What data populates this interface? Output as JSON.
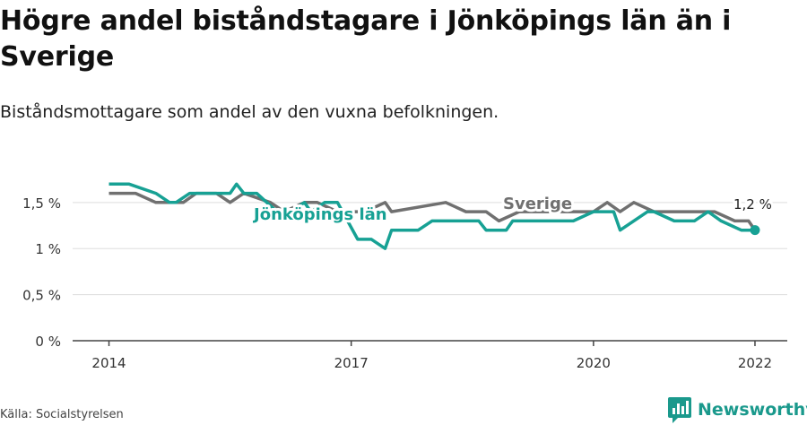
{
  "header": {
    "title": "Högre andel biståndstagare i Jönköpings län än i Sverige",
    "subtitle": "Biståndsmottagare som andel av den vuxna befolkningen."
  },
  "footer": {
    "source": "Källa: Socialstyrelsen",
    "brand": "Newsworthy",
    "brand_icon": "bar-chart-bubble-icon"
  },
  "colors": {
    "sverige": "#707070",
    "jonkoping": "#17a194",
    "grid": "#dddddd",
    "axis": "#444444"
  },
  "chart_data": {
    "type": "line",
    "title": "",
    "xlabel": "",
    "ylabel": "",
    "ylim": [
      0,
      1.8
    ],
    "xlim": [
      2013.55,
      2022.4
    ],
    "yticks": [
      0,
      0.5,
      1,
      1.5
    ],
    "ytick_labels": [
      "0 %",
      "0,5 %",
      "1 %",
      "1,5 %"
    ],
    "xticks": [
      2014,
      2017,
      2020,
      2022
    ],
    "xtick_labels": [
      "2014",
      "2017",
      "2020",
      "2022"
    ],
    "grid": true,
    "end_label": "1,2 %",
    "series": [
      {
        "name": "Sverige",
        "color": "#707070",
        "x": [
          2014.0,
          2014.33,
          2014.58,
          2014.92,
          2015.08,
          2015.33,
          2015.5,
          2015.67,
          2016.0,
          2016.17,
          2016.42,
          2016.58,
          2016.83,
          2017.17,
          2017.42,
          2017.5,
          2018.17,
          2018.42,
          2018.67,
          2018.83,
          2019.08,
          2019.5,
          2019.83,
          2020.0,
          2020.17,
          2020.33,
          2020.5,
          2020.75,
          2021.0,
          2021.25,
          2021.5,
          2021.75,
          2021.92,
          2022.0
        ],
        "y": [
          1.6,
          1.6,
          1.5,
          1.5,
          1.6,
          1.6,
          1.5,
          1.6,
          1.5,
          1.4,
          1.5,
          1.5,
          1.4,
          1.4,
          1.5,
          1.4,
          1.5,
          1.4,
          1.4,
          1.3,
          1.4,
          1.4,
          1.4,
          1.4,
          1.5,
          1.4,
          1.5,
          1.4,
          1.4,
          1.4,
          1.4,
          1.3,
          1.3,
          1.2
        ]
      },
      {
        "name": "Jönköpings län",
        "color": "#17a194",
        "x": [
          2014.0,
          2014.25,
          2014.58,
          2014.75,
          2014.83,
          2015.0,
          2015.17,
          2015.25,
          2015.42,
          2015.5,
          2015.58,
          2015.67,
          2015.83,
          2016.08,
          2016.17,
          2016.25,
          2016.42,
          2016.5,
          2016.67,
          2016.83,
          2017.08,
          2017.25,
          2017.42,
          2017.5,
          2017.58,
          2017.83,
          2018.0,
          2018.17,
          2018.58,
          2018.67,
          2018.92,
          2019.0,
          2019.08,
          2019.58,
          2019.75,
          2020.0,
          2020.17,
          2020.25,
          2020.33,
          2020.67,
          2020.75,
          2021.0,
          2021.08,
          2021.25,
          2021.42,
          2021.58,
          2021.83,
          2022.0
        ],
        "y": [
          1.7,
          1.7,
          1.6,
          1.5,
          1.5,
          1.6,
          1.6,
          1.6,
          1.6,
          1.6,
          1.7,
          1.6,
          1.6,
          1.4,
          1.4,
          1.4,
          1.5,
          1.4,
          1.5,
          1.5,
          1.1,
          1.1,
          1.0,
          1.2,
          1.2,
          1.2,
          1.3,
          1.3,
          1.3,
          1.2,
          1.2,
          1.3,
          1.3,
          1.3,
          1.3,
          1.4,
          1.4,
          1.4,
          1.2,
          1.4,
          1.4,
          1.3,
          1.3,
          1.3,
          1.4,
          1.3,
          1.2,
          1.2
        ]
      }
    ]
  }
}
